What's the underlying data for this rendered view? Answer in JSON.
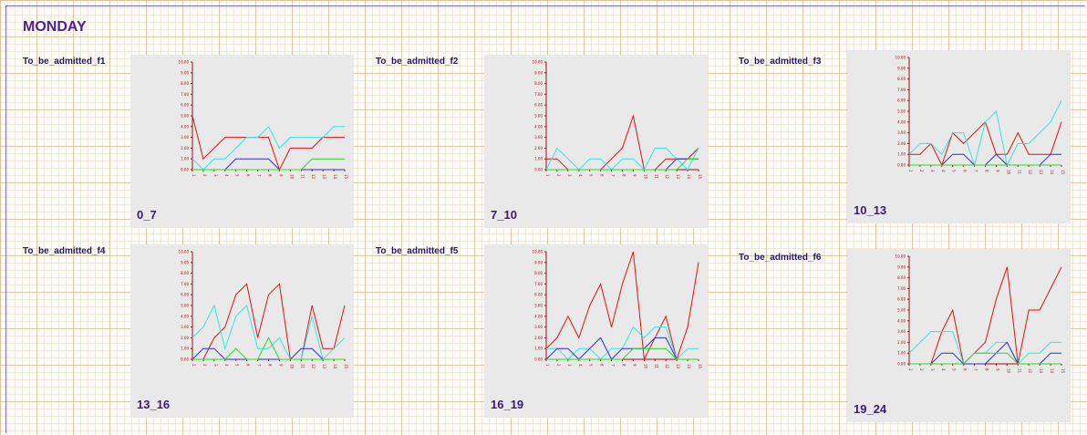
{
  "page": {
    "day_title": "MONDAY"
  },
  "panels": [
    {
      "title": "To_be_admitted_f1",
      "range_label": "0_7"
    },
    {
      "title": "To_be_admitted_f2",
      "range_label": "7_10"
    },
    {
      "title": "To_be_admitted_f3",
      "range_label": "10_13"
    },
    {
      "title": "To_be_admitted_f4",
      "range_label": "13_16"
    },
    {
      "title": "To_be_admitted_f5",
      "range_label": "16_19"
    },
    {
      "title": "To_be_admitted_f6",
      "range_label": "19_24"
    }
  ],
  "colors": {
    "red": "#e01010",
    "cyan": "#33e6e6",
    "blue": "#2a2ae0",
    "green": "#22dd22",
    "axis": "#9a1010",
    "panel_bg": "#e9e9e9"
  },
  "chart_data": [
    {
      "type": "line",
      "title": "",
      "ylim": [
        0,
        10
      ],
      "yticks": [
        "0.00",
        "1.00",
        "2.00",
        "3.00",
        "4.00",
        "5.00",
        "6.00",
        "7.00",
        "8.00",
        "9.00",
        "10.00"
      ],
      "x": [
        1,
        2,
        3,
        4,
        5,
        6,
        7,
        8,
        9,
        10,
        11,
        12,
        13,
        14,
        15
      ],
      "series": [
        {
          "color": "#e01010",
          "values": [
            5,
            1,
            2,
            3,
            3,
            3,
            3,
            3,
            0,
            2,
            2,
            2,
            3,
            3,
            3
          ]
        },
        {
          "color": "#33e6e6",
          "values": [
            1,
            0,
            1,
            1,
            2,
            3,
            3,
            4,
            2,
            3,
            3,
            3,
            3,
            4,
            4
          ]
        },
        {
          "color": "#2a2ae0",
          "values": [
            0,
            0,
            0,
            0,
            1,
            1,
            1,
            1,
            0,
            0,
            0,
            0,
            0,
            0,
            0
          ]
        },
        {
          "color": "#22dd22",
          "values": [
            0,
            0,
            0,
            0,
            0,
            0,
            0,
            0,
            0,
            0,
            0,
            1,
            1,
            1,
            1
          ]
        }
      ]
    },
    {
      "type": "line",
      "title": "",
      "ylim": [
        0,
        10
      ],
      "yticks": [
        "0.00",
        "1.00",
        "2.00",
        "3.00",
        "4.00",
        "5.00",
        "6.00",
        "7.00",
        "8.00",
        "9.00",
        "10.00"
      ],
      "x": [
        1,
        2,
        3,
        4,
        5,
        6,
        7,
        8,
        9,
        10,
        11,
        12,
        13,
        14,
        15
      ],
      "series": [
        {
          "color": "#e01010",
          "values": [
            1,
            1,
            0,
            0,
            0,
            0,
            1,
            2,
            5,
            0,
            0,
            1,
            1,
            1,
            2
          ]
        },
        {
          "color": "#33e6e6",
          "values": [
            0,
            2,
            1,
            0,
            1,
            1,
            0,
            1,
            1,
            0,
            2,
            2,
            1,
            0,
            2
          ]
        },
        {
          "color": "#2a2ae0",
          "values": [
            0,
            0,
            0,
            0,
            0,
            0,
            0,
            0,
            0,
            0,
            0,
            0,
            1,
            1,
            1
          ]
        },
        {
          "color": "#22dd22",
          "values": [
            0,
            0,
            0,
            0,
            0,
            0,
            0,
            0,
            0,
            0,
            0,
            0,
            0,
            1,
            1
          ]
        }
      ]
    },
    {
      "type": "line",
      "title": "",
      "ylim": [
        0,
        10
      ],
      "yticks": [
        "0.00",
        "1.00",
        "2.00",
        "3.00",
        "4.00",
        "5.00",
        "6.00",
        "7.00",
        "8.00",
        "9.00",
        "10.00"
      ],
      "x": [
        1,
        2,
        3,
        4,
        5,
        6,
        7,
        8,
        9,
        10,
        11,
        12,
        13,
        14,
        15
      ],
      "series": [
        {
          "color": "#e01010",
          "values": [
            1,
            1,
            2,
            0,
            3,
            2,
            3,
            4,
            1,
            1,
            3,
            1,
            1,
            1,
            4
          ]
        },
        {
          "color": "#33e6e6",
          "values": [
            1,
            2,
            2,
            1,
            3,
            3,
            0,
            4,
            5,
            0,
            2,
            2,
            3,
            4,
            6
          ]
        },
        {
          "color": "#2a2ae0",
          "values": [
            0,
            0,
            0,
            0,
            1,
            1,
            0,
            0,
            1,
            0,
            0,
            0,
            0,
            1,
            1
          ]
        },
        {
          "color": "#22dd22",
          "values": [
            0,
            0,
            0,
            0,
            0,
            0,
            0,
            0,
            0,
            0,
            0,
            0,
            0,
            0,
            0
          ]
        }
      ]
    },
    {
      "type": "line",
      "title": "",
      "ylim": [
        0,
        10
      ],
      "yticks": [
        "0.00",
        "1.00",
        "2.00",
        "3.00",
        "4.00",
        "5.00",
        "6.00",
        "7.00",
        "8.00",
        "9.00",
        "10.00"
      ],
      "x": [
        1,
        2,
        3,
        4,
        5,
        6,
        7,
        8,
        9,
        10,
        11,
        12,
        13,
        14,
        15
      ],
      "series": [
        {
          "color": "#e01010",
          "values": [
            0,
            0,
            2,
            3,
            6,
            7,
            2,
            6,
            7,
            0,
            0,
            5,
            1,
            1,
            5
          ]
        },
        {
          "color": "#33e6e6",
          "values": [
            2,
            3,
            5,
            1,
            4,
            5,
            1,
            1,
            2,
            0,
            0,
            4,
            0,
            1,
            2
          ]
        },
        {
          "color": "#2a2ae0",
          "values": [
            0,
            1,
            1,
            0,
            0,
            0,
            0,
            0,
            0,
            0,
            1,
            1,
            0,
            0,
            0
          ]
        },
        {
          "color": "#22dd22",
          "values": [
            0,
            0,
            0,
            0,
            1,
            0,
            0,
            2,
            0,
            0,
            0,
            0,
            0,
            0,
            0
          ]
        }
      ]
    },
    {
      "type": "line",
      "title": "",
      "ylim": [
        0,
        10
      ],
      "yticks": [
        "0.00",
        "1.00",
        "2.00",
        "3.00",
        "4.00",
        "5.00",
        "6.00",
        "7.00",
        "8.00",
        "9.00",
        "10.00"
      ],
      "x": [
        1,
        2,
        3,
        4,
        5,
        6,
        7,
        8,
        9,
        10,
        11,
        12,
        13,
        14,
        15
      ],
      "series": [
        {
          "color": "#e01010",
          "values": [
            1,
            2,
            4,
            2,
            5,
            7,
            3,
            7,
            10,
            0,
            2,
            4,
            0,
            3,
            9
          ]
        },
        {
          "color": "#33e6e6",
          "values": [
            1,
            1,
            0,
            1,
            1,
            0,
            1,
            1,
            3,
            2,
            3,
            3,
            0,
            1,
            1
          ]
        },
        {
          "color": "#2a2ae0",
          "values": [
            0,
            1,
            1,
            0,
            1,
            2,
            0,
            1,
            1,
            1,
            2,
            2,
            0,
            0,
            0
          ]
        },
        {
          "color": "#22dd22",
          "values": [
            0,
            0,
            0,
            0,
            0,
            0,
            0,
            0,
            1,
            1,
            1,
            1,
            0,
            0,
            0
          ]
        }
      ]
    },
    {
      "type": "line",
      "title": "",
      "ylim": [
        0,
        10
      ],
      "yticks": [
        "0.00",
        "1.00",
        "2.00",
        "3.00",
        "4.00",
        "5.00",
        "6.00",
        "7.00",
        "8.00",
        "9.00",
        "10.00"
      ],
      "x": [
        1,
        2,
        3,
        4,
        5,
        6,
        7,
        8,
        9,
        10,
        11,
        12,
        13,
        14,
        15
      ],
      "series": [
        {
          "color": "#e01010",
          "values": [
            0,
            0,
            0,
            3,
            5,
            0,
            1,
            2,
            6,
            9,
            0,
            5,
            5,
            7,
            9
          ]
        },
        {
          "color": "#33e6e6",
          "values": [
            1,
            2,
            3,
            3,
            3,
            0,
            1,
            1,
            2,
            2,
            0,
            1,
            1,
            2,
            2
          ]
        },
        {
          "color": "#2a2ae0",
          "values": [
            0,
            0,
            0,
            1,
            1,
            0,
            0,
            0,
            1,
            2,
            0,
            0,
            0,
            1,
            1
          ]
        },
        {
          "color": "#22dd22",
          "values": [
            0,
            0,
            0,
            0,
            0,
            0,
            1,
            1,
            1,
            1,
            0,
            0,
            0,
            0,
            0
          ]
        }
      ]
    }
  ]
}
